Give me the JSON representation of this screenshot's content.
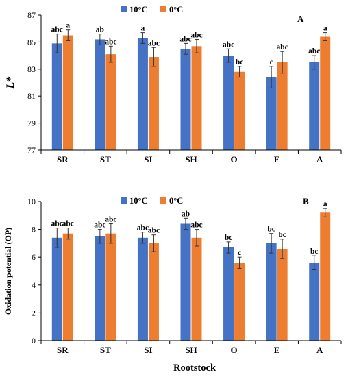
{
  "colors": {
    "series_10": "#4472c4",
    "series_0": "#ed7d31",
    "axis": "#000000",
    "errorbar": "#333333"
  },
  "x_axis_title": "Rootstock",
  "chart_data": [
    {
      "type": "bar",
      "panel_label": "A",
      "ylabel": "L*",
      "ylim": [
        77,
        87
      ],
      "yticks": [
        77,
        79,
        81,
        83,
        85,
        87
      ],
      "categories": [
        "SR",
        "ST",
        "SI",
        "SH",
        "O",
        "E",
        "A"
      ],
      "series": [
        {
          "name": "10°C",
          "values": [
            84.9,
            85.2,
            85.3,
            84.5,
            84.0,
            82.4,
            83.5
          ],
          "errors": [
            0.7,
            0.4,
            0.4,
            0.4,
            0.5,
            0.8,
            0.5
          ],
          "significance": [
            "abc",
            "ab",
            "a",
            "abc",
            "abc",
            "c",
            "abc"
          ]
        },
        {
          "name": "0°C",
          "values": [
            85.5,
            84.1,
            83.9,
            84.7,
            82.8,
            83.5,
            85.4
          ],
          "errors": [
            0.4,
            0.6,
            0.7,
            0.5,
            0.4,
            0.8,
            0.3
          ],
          "significance": [
            "a",
            "abc",
            "abc",
            "abc",
            "bc",
            "abc",
            "a"
          ]
        }
      ],
      "legend_position": "top"
    },
    {
      "type": "bar",
      "panel_label": "B",
      "ylabel": "Oxidation potential (OP)",
      "xlabel": "Rootstock",
      "ylim": [
        0,
        10
      ],
      "yticks": [
        0,
        2,
        4,
        6,
        8,
        10
      ],
      "categories": [
        "SR",
        "ST",
        "SI",
        "SH",
        "O",
        "E",
        "A"
      ],
      "series": [
        {
          "name": "10°C",
          "values": [
            7.4,
            7.5,
            7.4,
            8.4,
            6.7,
            7.0,
            5.6
          ],
          "errors": [
            0.7,
            0.5,
            0.4,
            0.4,
            0.4,
            0.7,
            0.5
          ],
          "significance": [
            "abc",
            "abc",
            "abc",
            "ab",
            "bc",
            "bc",
            "bc"
          ]
        },
        {
          "name": "0°C",
          "values": [
            7.7,
            7.7,
            7.0,
            7.4,
            5.6,
            6.6,
            9.2
          ],
          "errors": [
            0.4,
            0.7,
            0.6,
            0.6,
            0.4,
            0.7,
            0.3
          ],
          "significance": [
            "abc",
            "abc",
            "abc",
            "abc",
            "c",
            "bc",
            "a"
          ]
        }
      ],
      "legend_position": "top"
    }
  ]
}
